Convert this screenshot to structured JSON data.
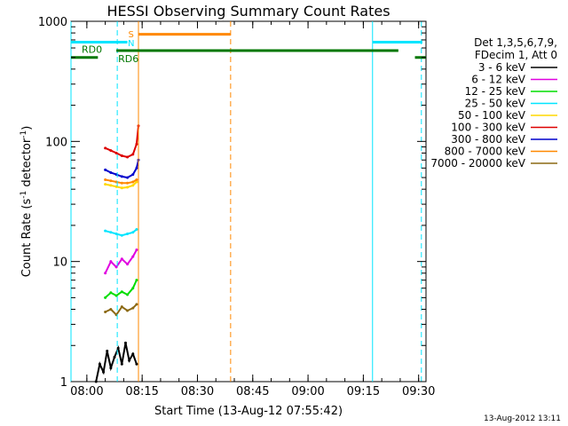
{
  "chart_data": {
    "type": "line",
    "title": "HESSI Observing Summary Count Rates",
    "xlabel": "Start Time (13-Aug-12 07:55:42)",
    "ylabel_main": "Count Rate (s",
    "ylabel_sup1": "-1",
    "ylabel_mid": " detector",
    "ylabel_sup2": "-1",
    "ylabel_end": ")",
    "y_scale": "log",
    "ylim": [
      1,
      1000
    ],
    "xlim": [
      "07:55:42",
      "09:32:00"
    ],
    "x_ticks": [
      "08:00",
      "08:15",
      "08:30",
      "08:45",
      "09:00",
      "09:15",
      "09:30"
    ],
    "y_ticks": [
      "1",
      "10",
      "100",
      "1000"
    ],
    "legend_header": [
      "Det 1,3,5,6,7,9,",
      "FDecim 1, Att 0"
    ],
    "legend_position": "right",
    "series": [
      {
        "name": "3 - 6 keV",
        "color": "#000000",
        "values": [
          [
            "08:02:30",
            1.0
          ],
          [
            "08:03:30",
            1.4
          ],
          [
            "08:04:30",
            1.2
          ],
          [
            "08:05:30",
            1.8
          ],
          [
            "08:06:30",
            1.3
          ],
          [
            "08:07:30",
            1.6
          ],
          [
            "08:08:30",
            1.9
          ],
          [
            "08:09:30",
            1.4
          ],
          [
            "08:10:30",
            2.1
          ],
          [
            "08:11:30",
            1.5
          ],
          [
            "08:12:30",
            1.7
          ],
          [
            "08:13:30",
            1.4
          ]
        ]
      },
      {
        "name": "6 - 12 keV",
        "color": "#e000e0",
        "values": [
          [
            "08:05:00",
            8.0
          ],
          [
            "08:06:30",
            10.0
          ],
          [
            "08:08:00",
            9.0
          ],
          [
            "08:09:30",
            10.5
          ],
          [
            "08:11:00",
            9.5
          ],
          [
            "08:12:30",
            11.0
          ],
          [
            "08:13:30",
            12.5
          ]
        ]
      },
      {
        "name": "12 - 25 keV",
        "color": "#00dd00",
        "values": [
          [
            "08:05:00",
            5.0
          ],
          [
            "08:06:30",
            5.5
          ],
          [
            "08:08:00",
            5.2
          ],
          [
            "08:09:30",
            5.6
          ],
          [
            "08:11:00",
            5.3
          ],
          [
            "08:12:30",
            6.0
          ],
          [
            "08:13:30",
            7.0
          ]
        ]
      },
      {
        "name": "25 - 50 keV",
        "color": "#00e5ff",
        "values": [
          [
            "08:05:00",
            18.0
          ],
          [
            "08:06:30",
            17.5
          ],
          [
            "08:08:00",
            17.0
          ],
          [
            "08:09:30",
            16.5
          ],
          [
            "08:11:00",
            17.0
          ],
          [
            "08:12:30",
            17.5
          ],
          [
            "08:13:30",
            18.5
          ]
        ]
      },
      {
        "name": "50 - 100 keV",
        "color": "#ffd800",
        "values": [
          [
            "08:05:00",
            44.0
          ],
          [
            "08:06:30",
            43.0
          ],
          [
            "08:08:00",
            42.0
          ],
          [
            "08:09:30",
            41.0
          ],
          [
            "08:11:00",
            41.5
          ],
          [
            "08:12:30",
            43.0
          ],
          [
            "08:13:30",
            46.0
          ]
        ]
      },
      {
        "name": "100 - 300 keV",
        "color": "#dd0000",
        "values": [
          [
            "08:05:00",
            88.0
          ],
          [
            "08:06:30",
            84.0
          ],
          [
            "08:08:00",
            80.0
          ],
          [
            "08:09:30",
            76.0
          ],
          [
            "08:11:00",
            74.0
          ],
          [
            "08:12:30",
            78.0
          ],
          [
            "08:13:30",
            95.0
          ],
          [
            "08:14:00",
            135.0
          ]
        ]
      },
      {
        "name": "300 - 800 keV",
        "color": "#0000cc",
        "values": [
          [
            "08:05:00",
            58.0
          ],
          [
            "08:06:30",
            55.0
          ],
          [
            "08:08:00",
            53.0
          ],
          [
            "08:09:30",
            51.0
          ],
          [
            "08:11:00",
            50.0
          ],
          [
            "08:12:30",
            53.0
          ],
          [
            "08:13:30",
            60.0
          ],
          [
            "08:14:00",
            70.0
          ]
        ]
      },
      {
        "name": "800 - 7000 keV",
        "color": "#ff8800",
        "values": [
          [
            "08:05:00",
            48.0
          ],
          [
            "08:06:30",
            47.0
          ],
          [
            "08:08:00",
            46.0
          ],
          [
            "08:09:30",
            45.0
          ],
          [
            "08:11:00",
            45.0
          ],
          [
            "08:12:30",
            46.0
          ],
          [
            "08:13:30",
            48.0
          ]
        ]
      },
      {
        "name": "7000 - 20000 keV",
        "color": "#8b6914",
        "values": [
          [
            "08:05:00",
            3.8
          ],
          [
            "08:06:30",
            4.0
          ],
          [
            "08:08:00",
            3.6
          ],
          [
            "08:09:30",
            4.2
          ],
          [
            "08:11:00",
            3.9
          ],
          [
            "08:12:30",
            4.1
          ],
          [
            "08:13:30",
            4.4
          ]
        ]
      }
    ],
    "annotations": {
      "rd0_label": "RD0",
      "rd6_label": "RD6",
      "s_label": "S",
      "n_label": "N",
      "rd_segments": [
        {
          "start": "07:55:42",
          "end": "08:03:00",
          "value": 500
        },
        {
          "start": "08:08:00",
          "end": "09:24:30",
          "value": 570
        },
        {
          "start": "09:29:00",
          "end": "09:32:00",
          "value": 500
        }
      ],
      "saa_segments": [
        {
          "start": "07:55:42",
          "end": "08:11:00",
          "value": 670
        },
        {
          "start": "09:17:30",
          "end": "09:31:00",
          "value": 670
        }
      ],
      "flare_segment": {
        "start": "08:14:00",
        "end": "08:39:00",
        "value": 780
      },
      "cyan_solid": [
        "07:55:42",
        "09:17:30"
      ],
      "cyan_dashed": [
        "08:08:15",
        "09:30:45"
      ],
      "orange_solid": [
        "08:14:00"
      ],
      "orange_dashed": [
        "08:39:00"
      ],
      "n_mark_time": "08:12:00"
    },
    "colors": {
      "rd": "#007700",
      "saa": "#00e5ff",
      "flare": "#ff8800",
      "s_mark": "#ff8800",
      "n_mark": "#00e5ff"
    }
  },
  "stamp": "13-Aug-2012 13:11"
}
